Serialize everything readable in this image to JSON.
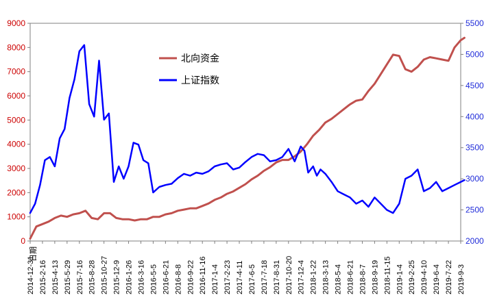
{
  "chart_data": {
    "type": "line",
    "title": "",
    "xlabel": "",
    "x_axis_label": "日期",
    "legend_placement": "upper-middle",
    "grid": false,
    "colors": {
      "north": "#c0504d",
      "sse": "#0000ff",
      "left_ticks": "#cc0000",
      "right_ticks": "#1f2bd9",
      "frame": "#7f7f7f"
    },
    "y_left": {
      "min": 0,
      "max": 9000,
      "ticks": [
        "0",
        "1000",
        "2000",
        "3000",
        "4000",
        "5000",
        "6000",
        "7000",
        "8000",
        "9000"
      ]
    },
    "y_right": {
      "min": 2000,
      "max": 5500,
      "ticks": [
        "2000",
        "2500",
        "3000",
        "3500",
        "4000",
        "4500",
        "5000",
        "5500"
      ]
    },
    "x_tick_labels": [
      "2014-12-31",
      "2015-2-16",
      "2015-4-13",
      "2015-5-29",
      "2015-7-16",
      "2015-8-28",
      "2015-10-27",
      "2015-12-9",
      "2016-1-26",
      "2016-3-16",
      "2016-5-5",
      "2016-6-21",
      "2016-8-8",
      "2016-9-22",
      "2016-11-16",
      "2017-1-4",
      "2017-2-23",
      "2017-4-11",
      "2017-6-5",
      "2017-7-18",
      "2017-8-31",
      "2017-10-20",
      "2017-12-4",
      "2018-1-22",
      "2018-3-13",
      "2018-5-4",
      "2018-6-21",
      "2018-8-7",
      "2018-9-19",
      "2018-11-15",
      "2019-1-4",
      "2019-2-25",
      "2019-4-10",
      "2019-6-4",
      "2019-7-22",
      "2019-9-3"
    ],
    "series": [
      {
        "name": "北向资金",
        "axis": "left",
        "x": [
          0,
          0.5,
          1,
          1.5,
          2,
          2.5,
          3,
          3.5,
          4,
          4.5,
          5,
          5.5,
          6,
          6.5,
          7,
          7.5,
          8,
          8.5,
          9,
          9.5,
          10,
          10.5,
          11,
          11.5,
          12,
          12.5,
          13,
          13.5,
          14,
          14.5,
          15,
          15.5,
          16,
          16.5,
          17,
          17.5,
          18,
          18.5,
          19,
          19.5,
          20,
          20.5,
          21,
          21.5,
          22,
          22.5,
          23,
          23.5,
          24,
          24.5,
          25,
          25.5,
          26,
          26.5,
          27,
          27.5,
          28,
          28.5,
          29,
          29.5,
          30,
          30.5,
          31,
          31.5,
          32,
          32.5,
          33,
          33.5,
          34,
          34.5,
          35,
          35.3
        ],
        "values": [
          100,
          600,
          700,
          800,
          950,
          1050,
          1000,
          1100,
          1150,
          1250,
          950,
          900,
          1150,
          1150,
          950,
          900,
          900,
          850,
          900,
          900,
          1000,
          1000,
          1100,
          1150,
          1250,
          1300,
          1350,
          1350,
          1450,
          1550,
          1700,
          1800,
          1950,
          2050,
          2200,
          2350,
          2550,
          2700,
          2900,
          3050,
          3250,
          3350,
          3350,
          3500,
          3700,
          4000,
          4350,
          4600,
          4900,
          5050,
          5250,
          5450,
          5650,
          5800,
          5850,
          6200,
          6500,
          6900,
          7300,
          7700,
          7650,
          7100,
          7000,
          7200,
          7500,
          7600,
          7550,
          7500,
          7450,
          8000,
          8300,
          8400
        ]
      },
      {
        "name": "上证指数",
        "axis": "right",
        "x": [
          0,
          0.4,
          0.8,
          1.2,
          1.6,
          2,
          2.4,
          2.8,
          3.2,
          3.6,
          4,
          4.4,
          4.8,
          5.2,
          5.6,
          6,
          6.4,
          6.8,
          7.2,
          7.6,
          8,
          8.4,
          8.8,
          9.2,
          9.6,
          10,
          10.5,
          11,
          11.5,
          12,
          12.5,
          13,
          13.5,
          14,
          14.5,
          15,
          15.5,
          16,
          16.5,
          17,
          17.5,
          18,
          18.5,
          19,
          19.5,
          20,
          20.5,
          21,
          21.5,
          22,
          22.3,
          22.6,
          23,
          23.3,
          23.6,
          24,
          24.5,
          25,
          25.5,
          26,
          26.5,
          27,
          27.5,
          28,
          28.5,
          29,
          29.5,
          30,
          30.5,
          31,
          31.5,
          32,
          32.5,
          33,
          33.5,
          34,
          34.5,
          35,
          35.3
        ],
        "values": [
          2450,
          2600,
          2900,
          3300,
          3350,
          3200,
          3650,
          3800,
          4300,
          4600,
          5050,
          5150,
          4200,
          4000,
          4900,
          3950,
          4050,
          2950,
          3200,
          3000,
          3200,
          3580,
          3550,
          3300,
          3250,
          2780,
          2870,
          2900,
          2920,
          3010,
          3080,
          3050,
          3100,
          3080,
          3120,
          3200,
          3230,
          3250,
          3150,
          3180,
          3270,
          3350,
          3400,
          3380,
          3280,
          3300,
          3350,
          3480,
          3280,
          3520,
          3450,
          3100,
          3200,
          3050,
          3150,
          3080,
          2950,
          2800,
          2750,
          2700,
          2600,
          2650,
          2550,
          2700,
          2600,
          2500,
          2450,
          2600,
          3000,
          3050,
          3150,
          2800,
          2850,
          2950,
          2800,
          2850,
          2900,
          2950,
          2980
        ]
      }
    ]
  }
}
